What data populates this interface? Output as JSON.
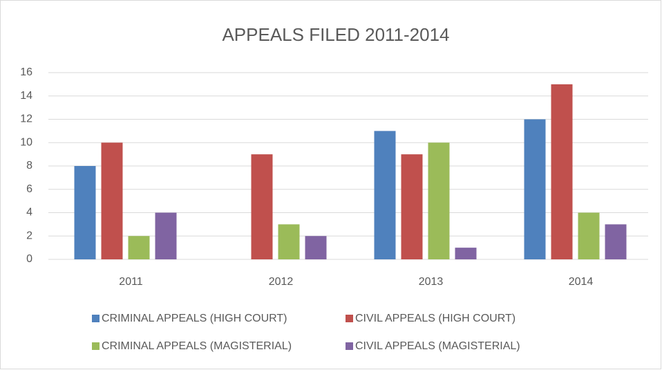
{
  "chart_data": {
    "type": "bar",
    "title": "APPEALS FILED 2011-2014",
    "categories": [
      "2011",
      "2012",
      "2013",
      "2014"
    ],
    "series": [
      {
        "name": "CRIMINAL APPEALS (HIGH COURT)",
        "color": "#4f81bd",
        "values": [
          8,
          0,
          11,
          12
        ]
      },
      {
        "name": "CIVIL APPEALS (HIGH COURT)",
        "color": "#c0504d",
        "values": [
          10,
          9,
          9,
          15
        ]
      },
      {
        "name": "CRIMINAL APPEALS (MAGISTERIAL)",
        "color": "#9bbb59",
        "values": [
          2,
          3,
          10,
          4
        ]
      },
      {
        "name": "CIVIL APPEALS (MAGISTERIAL)",
        "color": "#8064a2",
        "values": [
          4,
          2,
          1,
          3
        ]
      }
    ],
    "ylim": [
      0,
      16
    ],
    "yticks": [
      0,
      2,
      4,
      6,
      8,
      10,
      12,
      14,
      16
    ],
    "grid": true,
    "legend": "bottom"
  }
}
